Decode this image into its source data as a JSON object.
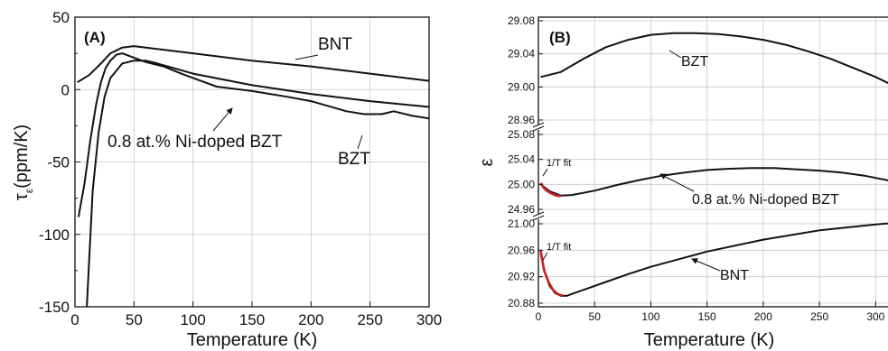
{
  "chart_data": [
    {
      "panel_label": "(A)",
      "type": "line",
      "xlabel": "Temperature (K)",
      "ylabel_main": "τ",
      "ylabel_sub": "ε",
      "ylabel_unit": "(ppm/K)",
      "xlim": [
        0,
        300
      ],
      "ylim": [
        -150,
        50
      ],
      "xticks": [
        "0",
        "50",
        "100",
        "150",
        "200",
        "250",
        "300"
      ],
      "yticks": [
        "50",
        "0",
        "-50",
        "-100",
        "-150"
      ],
      "grid": true,
      "series": [
        {
          "name": "BNT",
          "x": [
            2,
            12,
            22,
            30,
            40,
            50,
            60,
            100,
            150,
            200,
            250,
            300
          ],
          "y": [
            5,
            10,
            18,
            25,
            29,
            30,
            29,
            25,
            20,
            16,
            11,
            6
          ]
        },
        {
          "name": "0.8 at.% Ni-doped BZT",
          "x": [
            10,
            15,
            20,
            25,
            30,
            40,
            50,
            60,
            70,
            100,
            150,
            200,
            250,
            300
          ],
          "y": [
            -150,
            -70,
            -30,
            -5,
            8,
            18,
            20,
            20,
            18,
            11,
            3,
            -3,
            -8,
            -12
          ]
        },
        {
          "name": "BZT",
          "x": [
            3,
            8,
            13,
            18,
            22,
            26,
            30,
            35,
            40,
            50,
            60,
            75,
            90,
            100,
            120,
            150,
            180,
            200,
            230,
            245,
            260,
            270,
            285,
            300
          ],
          "y": [
            -88,
            -65,
            -35,
            -10,
            5,
            15,
            20,
            24,
            25,
            22,
            19,
            16,
            11,
            8,
            2,
            -1,
            -5,
            -8,
            -15,
            -17,
            -17,
            -15,
            -18,
            -20
          ]
        }
      ],
      "annotations": [
        {
          "text": "BNT",
          "target": "BNT"
        },
        {
          "text": "0.8 at.% Ni-doped BZT",
          "target": "0.8 at.% Ni-doped BZT"
        },
        {
          "text": "BZT",
          "target": "BZT"
        }
      ]
    },
    {
      "panel_label": "(B)",
      "type": "line",
      "xlabel": "Temperature (K)",
      "ylabel": "ε",
      "xlim": [
        0,
        315
      ],
      "xticks": [
        "0",
        "50",
        "100",
        "150",
        "200",
        "250",
        "300"
      ],
      "grid": true,
      "broken_axis": true,
      "segments": [
        {
          "name": "BZT",
          "ylim": [
            28.96,
            29.08
          ],
          "yticks": [
            "29.08",
            "29.04",
            "29.00",
            "28.96"
          ],
          "series": [
            {
              "name": "BZT",
              "x": [
                2,
                20,
                40,
                60,
                80,
                100,
                120,
                140,
                160,
                180,
                200,
                220,
                240,
                260,
                280,
                300,
                315
              ],
              "y": [
                29.012,
                29.018,
                29.034,
                29.048,
                29.057,
                29.063,
                29.065,
                29.065,
                29.064,
                29.061,
                29.057,
                29.051,
                29.043,
                29.034,
                29.023,
                29.012,
                29.002
              ]
            }
          ]
        },
        {
          "name": "0.8 at.% Ni-doped BZT",
          "ylim": [
            24.96,
            25.08
          ],
          "yticks": [
            "25.08",
            "25.04",
            "25.00",
            "24.96"
          ],
          "series": [
            {
              "name": "0.8 at.% Ni-doped BZT",
              "x": [
                2,
                10,
                20,
                30,
                50,
                70,
                90,
                110,
                130,
                150,
                170,
                190,
                210,
                230,
                250,
                270,
                290,
                315
              ],
              "y": [
                25.0,
                24.989,
                24.982,
                24.983,
                24.99,
                24.999,
                25.007,
                25.014,
                25.019,
                25.023,
                25.025,
                25.026,
                25.026,
                25.024,
                25.022,
                25.019,
                25.014,
                25.005
              ]
            },
            {
              "name": "1/T fit",
              "color": "#cc2020",
              "x": [
                2,
                5,
                8,
                12,
                16,
                20
              ],
              "y": [
                25.002,
                24.994,
                24.989,
                24.985,
                24.982,
                24.981
              ]
            }
          ]
        },
        {
          "name": "BNT",
          "ylim": [
            20.88,
            21.0
          ],
          "yticks": [
            "21.00",
            "20.96",
            "20.92",
            "20.88"
          ],
          "series": [
            {
              "name": "BNT",
              "x": [
                2,
                6,
                10,
                15,
                20,
                25,
                40,
                60,
                80,
                100,
                150,
                200,
                250,
                300,
                315
              ],
              "y": [
                20.955,
                20.925,
                20.906,
                20.895,
                20.891,
                20.891,
                20.9,
                20.912,
                20.924,
                20.935,
                20.958,
                20.976,
                20.99,
                20.999,
                21.001
              ]
            },
            {
              "name": "1/T fit",
              "color": "#cc2020",
              "x": [
                2,
                5,
                9,
                13,
                17,
                22
              ],
              "y": [
                20.96,
                20.93,
                20.912,
                20.9,
                20.894,
                20.891
              ]
            }
          ]
        }
      ],
      "annotations": [
        {
          "text": "BZT"
        },
        {
          "text": "0.8 at.% Ni-doped BZT"
        },
        {
          "text": "BNT"
        },
        {
          "text": "1/T fit"
        },
        {
          "text": "1/T fit"
        }
      ]
    }
  ]
}
